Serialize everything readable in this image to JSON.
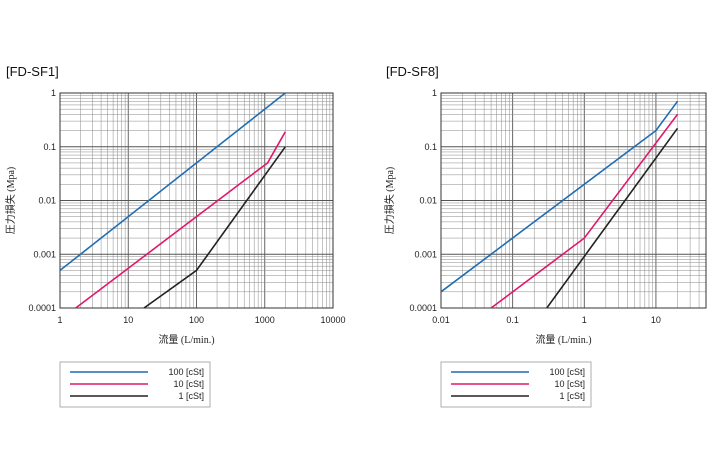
{
  "chart_data": [
    {
      "type": "line",
      "title": "[FD-SF1]",
      "xlabel": "流量 (L/min.)",
      "ylabel": "圧力損失 (Mpa)",
      "xscale": "log",
      "yscale": "log",
      "xlim": [
        1,
        10000
      ],
      "ylim": [
        0.0001,
        1
      ],
      "xticks": [
        "1",
        "10",
        "100",
        "1000",
        "10000"
      ],
      "yticks": [
        "1",
        "0.1",
        "0.01",
        "0.001",
        "0.0001"
      ],
      "grid": true,
      "legend": "bottom",
      "series": [
        {
          "name": "100 [cSt]",
          "color": "#1f6db3",
          "points": [
            [
              1,
              0.0005
            ],
            [
              2000,
              1.0
            ]
          ]
        },
        {
          "name": "10 [cSt]",
          "color": "#e0186c",
          "points": [
            [
              1.7,
              0.0001
            ],
            [
              1100,
              0.05
            ],
            [
              2000,
              0.19
            ]
          ]
        },
        {
          "name": "1 [cSt]",
          "color": "#222222",
          "points": [
            [
              17,
              0.0001
            ],
            [
              100,
              0.0005
            ],
            [
              2000,
              0.1
            ]
          ]
        }
      ]
    },
    {
      "type": "line",
      "title": "[FD-SF8]",
      "xlabel": "流量 (L/min.)",
      "ylabel": "圧力損失 (Mpa)",
      "xscale": "log",
      "yscale": "log",
      "xlim": [
        0.01,
        50
      ],
      "ylim": [
        0.0001,
        1
      ],
      "xticks": [
        "0.01",
        "0.1",
        "1",
        "10"
      ],
      "yticks": [
        "1",
        "0.1",
        "0.01",
        "0.001",
        "0.0001"
      ],
      "grid": true,
      "legend": "bottom",
      "series": [
        {
          "name": "100 [cSt]",
          "color": "#1f6db3",
          "points": [
            [
              0.01,
              0.0002
            ],
            [
              10,
              0.2
            ],
            [
              20,
              0.7
            ]
          ]
        },
        {
          "name": "10 [cSt]",
          "color": "#e0186c",
          "points": [
            [
              0.05,
              0.0001
            ],
            [
              1,
              0.002
            ],
            [
              20,
              0.4
            ]
          ]
        },
        {
          "name": "1 [cSt]",
          "color": "#222222",
          "points": [
            [
              0.3,
              0.0001
            ],
            [
              20,
              0.22
            ]
          ]
        }
      ]
    }
  ]
}
